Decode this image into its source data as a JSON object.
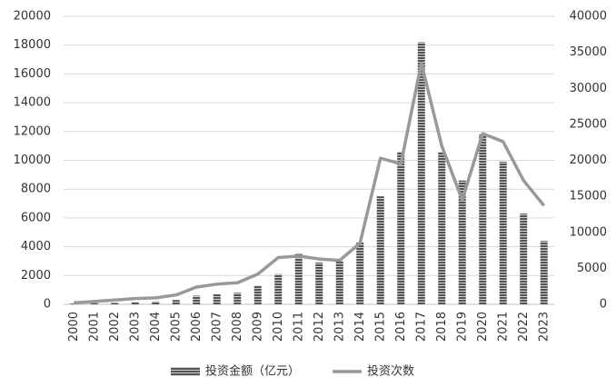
{
  "chart_data": {
    "type": "bar",
    "categories": [
      "2000",
      "2001",
      "2002",
      "2003",
      "2004",
      "2005",
      "2006",
      "2007",
      "2008",
      "2009",
      "2010",
      "2011",
      "2012",
      "2013",
      "2014",
      "2015",
      "2016",
      "2017",
      "2018",
      "2019",
      "2020",
      "2021",
      "2022",
      "2023"
    ],
    "series": [
      {
        "name": "投资金额（亿元）",
        "color": "#555555",
        "type": "bar",
        "values": [
          50,
          80,
          100,
          150,
          200,
          300,
          600,
          700,
          800,
          1300,
          2100,
          3500,
          2900,
          3000,
          4300,
          7500,
          10600,
          18200,
          10600,
          8600,
          11800,
          9900,
          6300,
          4400
        ]
      },
      {
        "name": "投资次数",
        "color": "#999999",
        "type": "line",
        "axis": "y2",
        "values": [
          200,
          400,
          600,
          800,
          900,
          1300,
          2400,
          2800,
          3000,
          4200,
          6500,
          6700,
          6300,
          6100,
          8500,
          20300,
          19500,
          33500,
          22000,
          14500,
          23700,
          22600,
          17200,
          13700
        ]
      }
    ],
    "ylim": [
      0,
      20000
    ],
    "yticks": [
      0,
      2000,
      4000,
      6000,
      8000,
      10000,
      12000,
      14000,
      16000,
      18000,
      20000
    ],
    "y2lim": [
      0,
      40000
    ],
    "y2ticks": [
      0,
      5000,
      10000,
      15000,
      20000,
      25000,
      30000,
      35000,
      40000
    ],
    "grid": true,
    "legend": "bottom"
  }
}
